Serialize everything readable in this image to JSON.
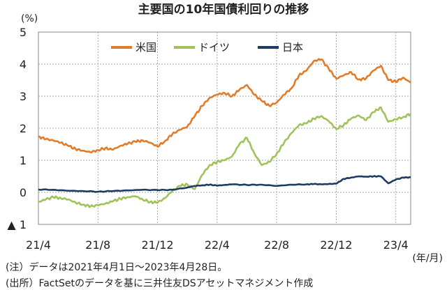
{
  "chart_data": {
    "type": "line",
    "title": "主要国の10年国債利回りの推移",
    "ylabel": "(%)",
    "xunit": "(年/月)",
    "ylim": [
      -1,
      5
    ],
    "yticks": [
      {
        "value": 5,
        "label": "5"
      },
      {
        "value": 4,
        "label": "4"
      },
      {
        "value": 3,
        "label": "3"
      },
      {
        "value": 2,
        "label": "2"
      },
      {
        "value": 1,
        "label": "1"
      },
      {
        "value": 0,
        "label": "0"
      },
      {
        "value": -1,
        "label": "▲ 1"
      }
    ],
    "xlim": [
      0,
      25
    ],
    "xticks": [
      {
        "value": 0,
        "label": "21/4"
      },
      {
        "value": 4,
        "label": "21/8"
      },
      {
        "value": 8,
        "label": "21/12"
      },
      {
        "value": 12,
        "label": "22/4"
      },
      {
        "value": 16,
        "label": "22/8"
      },
      {
        "value": 20,
        "label": "22/12"
      },
      {
        "value": 24,
        "label": "23/4"
      }
    ],
    "x_note": "x values are months elapsed since 2021/4/1",
    "grid": true,
    "legend_position": "top-center",
    "series": [
      {
        "name": "米国",
        "color": "#e27b2a",
        "x": [
          0,
          0.5,
          1,
          1.5,
          2,
          2.5,
          3,
          3.5,
          4,
          4.5,
          5,
          5.5,
          6,
          6.5,
          7,
          7.5,
          8,
          8.5,
          9,
          9.5,
          10,
          10.5,
          11,
          11.5,
          12,
          12.5,
          13,
          13.5,
          14,
          14.5,
          15,
          15.5,
          16,
          16.5,
          17,
          17.5,
          18,
          18.5,
          19,
          19.5,
          20,
          20.5,
          21,
          21.5,
          22,
          22.5,
          23,
          23.5,
          24,
          24.5,
          25
        ],
        "values": [
          1.74,
          1.66,
          1.62,
          1.55,
          1.45,
          1.35,
          1.3,
          1.25,
          1.32,
          1.38,
          1.33,
          1.45,
          1.52,
          1.58,
          1.62,
          1.55,
          1.43,
          1.6,
          1.82,
          1.95,
          2.05,
          2.38,
          2.7,
          2.95,
          3.05,
          3.1,
          3.0,
          3.2,
          3.35,
          3.05,
          2.85,
          2.7,
          2.8,
          3.05,
          3.25,
          3.65,
          3.8,
          4.1,
          4.15,
          3.85,
          3.55,
          3.65,
          3.75,
          3.52,
          3.55,
          3.8,
          3.95,
          3.5,
          3.45,
          3.58,
          3.42
        ]
      },
      {
        "name": "ドイツ",
        "color": "#9fc35a",
        "x": [
          0,
          0.5,
          1,
          1.5,
          2,
          2.5,
          3,
          3.5,
          4,
          4.5,
          5,
          5.5,
          6,
          6.5,
          7,
          7.5,
          8,
          8.5,
          9,
          9.5,
          10,
          10.5,
          11,
          11.5,
          12,
          12.5,
          13,
          13.5,
          14,
          14.5,
          15,
          15.5,
          16,
          16.5,
          17,
          17.5,
          18,
          18.5,
          19,
          19.5,
          20,
          20.5,
          21,
          21.5,
          22,
          22.5,
          23,
          23.5,
          24,
          24.5,
          25
        ],
        "values": [
          -0.3,
          -0.22,
          -0.15,
          -0.18,
          -0.22,
          -0.32,
          -0.38,
          -0.44,
          -0.4,
          -0.35,
          -0.28,
          -0.2,
          -0.15,
          -0.12,
          -0.22,
          -0.3,
          -0.32,
          -0.18,
          0.05,
          0.2,
          0.25,
          0.1,
          0.55,
          0.85,
          0.95,
          1.0,
          1.12,
          1.5,
          1.7,
          1.22,
          0.85,
          0.95,
          1.2,
          1.55,
          1.85,
          2.1,
          2.15,
          2.3,
          2.38,
          2.22,
          1.98,
          2.1,
          2.3,
          2.4,
          2.25,
          2.5,
          2.65,
          2.2,
          2.28,
          2.35,
          2.45
        ]
      },
      {
        "name": "日本",
        "color": "#1d3b63",
        "x": [
          0,
          1,
          2,
          3,
          4,
          5,
          6,
          7,
          8,
          9,
          10,
          10.5,
          11,
          11.5,
          12,
          12.5,
          13,
          14,
          15,
          16,
          17,
          18,
          18.5,
          19,
          19.5,
          20,
          20.5,
          21,
          21.5,
          22,
          22.5,
          23,
          23.5,
          24,
          24.5,
          25
        ],
        "values": [
          0.09,
          0.08,
          0.05,
          0.04,
          0.02,
          0.04,
          0.06,
          0.08,
          0.07,
          0.08,
          0.15,
          0.2,
          0.22,
          0.24,
          0.21,
          0.23,
          0.25,
          0.23,
          0.24,
          0.2,
          0.24,
          0.25,
          0.26,
          0.25,
          0.26,
          0.27,
          0.42,
          0.46,
          0.5,
          0.49,
          0.5,
          0.5,
          0.28,
          0.4,
          0.46,
          0.47
        ]
      }
    ]
  },
  "notes": {
    "note1": "(注）データは2021年4月1日～2023年4月28日。",
    "note2": "(出所）FactSetのデータを基に三井住友DSアセットマネジメント作成"
  }
}
